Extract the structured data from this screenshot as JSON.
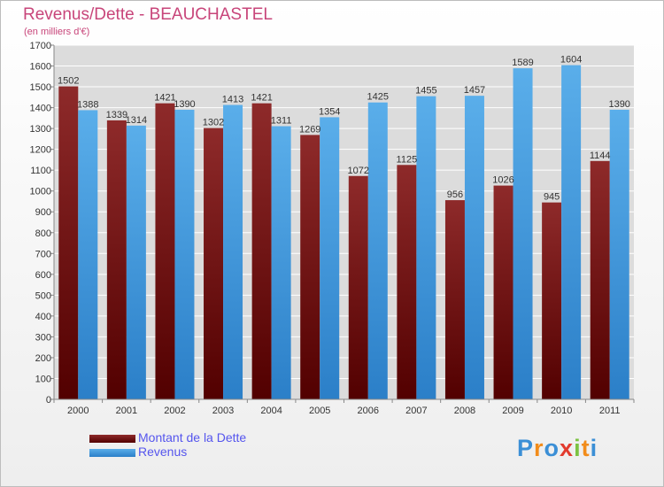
{
  "title": "Revenus/Dette - BEAUCHASTEL",
  "subtitle": "(en milliers d'€)",
  "chart_data": {
    "type": "bar",
    "categories": [
      "2000",
      "2001",
      "2002",
      "2003",
      "2004",
      "2005",
      "2006",
      "2007",
      "2008",
      "2009",
      "2010",
      "2011"
    ],
    "series": [
      {
        "name": "Montant de la Dette",
        "values": [
          1502,
          1339,
          1421,
          1302,
          1421,
          1269,
          1072,
          1125,
          956,
          1026,
          945,
          1144
        ],
        "color": "#7b1a1a"
      },
      {
        "name": "Revenus",
        "values": [
          1388,
          1314,
          1390,
          1413,
          1311,
          1354,
          1425,
          1455,
          1457,
          1589,
          1604,
          1390
        ],
        "color": "#4da3e3"
      }
    ],
    "ylim": [
      0,
      1700
    ],
    "yticks": [
      0,
      100,
      200,
      300,
      400,
      500,
      600,
      700,
      800,
      900,
      1000,
      1100,
      1200,
      1300,
      1400,
      1500,
      1600,
      1700
    ],
    "grid": true,
    "legend": "bottom-left"
  },
  "logo": {
    "text": "Proxiti",
    "letters": [
      "P",
      "r",
      "o",
      "x",
      "i",
      "t",
      "i"
    ],
    "colors": [
      "#3b8fd6",
      "#f28c1a",
      "#3b8fd6",
      "#e23b2e",
      "#7cc242",
      "#f28c1a",
      "#3b8fd6"
    ]
  }
}
